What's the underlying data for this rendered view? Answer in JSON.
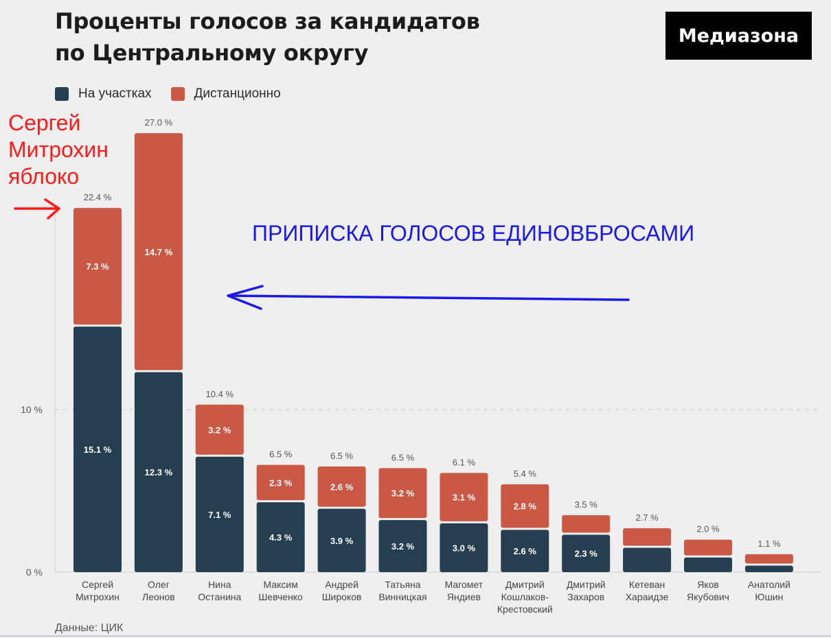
{
  "header": {
    "title_line1": "Проценты голосов за кандидатов",
    "title_line2": "по Центральному округу",
    "brand": "Медиазона"
  },
  "legend": {
    "onsite_label": "На участках",
    "remote_label": "Дистанционно"
  },
  "source": "Данные: ЦИК",
  "annotations": {
    "red_note": [
      "Сергей",
      "Митрохин",
      "яблоко"
    ],
    "blue_note": "ПРИПИСКА ГОЛОСОВ ЕДИНОВБРОСАМИ"
  },
  "colors": {
    "onsite": "#263f50",
    "remote": "#c95844",
    "annotation_red": "#ff1a1a",
    "annotation_blue": "#1818ee"
  },
  "chart_data": {
    "type": "bar",
    "stacked": true,
    "categories": [
      [
        "Сергей",
        "Митрохин"
      ],
      [
        "Олег",
        "Леонов"
      ],
      [
        "Нина",
        "Останина"
      ],
      [
        "Максим",
        "Шевченко"
      ],
      [
        "Андрей",
        "Широков"
      ],
      [
        "Татьяна",
        "Винницкая"
      ],
      [
        "Магомет",
        "Яндиев"
      ],
      [
        "Дмитрий",
        "Кошлаков-",
        "Крестовский"
      ],
      [
        "Дмитрий",
        "Захаров"
      ],
      [
        "Кетеван",
        "Хараидзе"
      ],
      [
        "Яков",
        "Якубович"
      ],
      [
        "Анатолий",
        "Юшин"
      ]
    ],
    "series": [
      {
        "name": "На участках",
        "values": [
          15.1,
          12.3,
          7.1,
          4.3,
          3.9,
          3.2,
          3.0,
          2.6,
          2.3,
          1.5,
          0.9,
          0.4
        ],
        "labels": [
          "15.1 %",
          "12.3 %",
          "7.1 %",
          "4.3 %",
          "3.9 %",
          "3.2 %",
          "3.0 %",
          "2.6 %",
          "2.3 %",
          "",
          "",
          ""
        ]
      },
      {
        "name": "Дистанционно",
        "values": [
          7.3,
          14.7,
          3.2,
          2.3,
          2.6,
          3.2,
          3.1,
          2.8,
          1.2,
          1.2,
          1.1,
          0.7
        ],
        "labels": [
          "7.3 %",
          "14.7 %",
          "3.2 %",
          "2.3 %",
          "2.6 %",
          "3.2 %",
          "3.1 %",
          "2.8 %",
          "",
          "",
          "",
          ""
        ]
      }
    ],
    "totals": [
      "22.4 %",
      "27.0 %",
      "10.4 %",
      "6.5 %",
      "6.5 %",
      "6.5 %",
      "6.1 %",
      "5.4 %",
      "3.5 %",
      "2.7 %",
      "2.0 %",
      "1.1 %"
    ],
    "y_ticks": [
      {
        "value": 0,
        "label": "0 %"
      },
      {
        "value": 10,
        "label": "10 %"
      }
    ],
    "ylim": [
      0,
      27
    ],
    "grid": true
  }
}
